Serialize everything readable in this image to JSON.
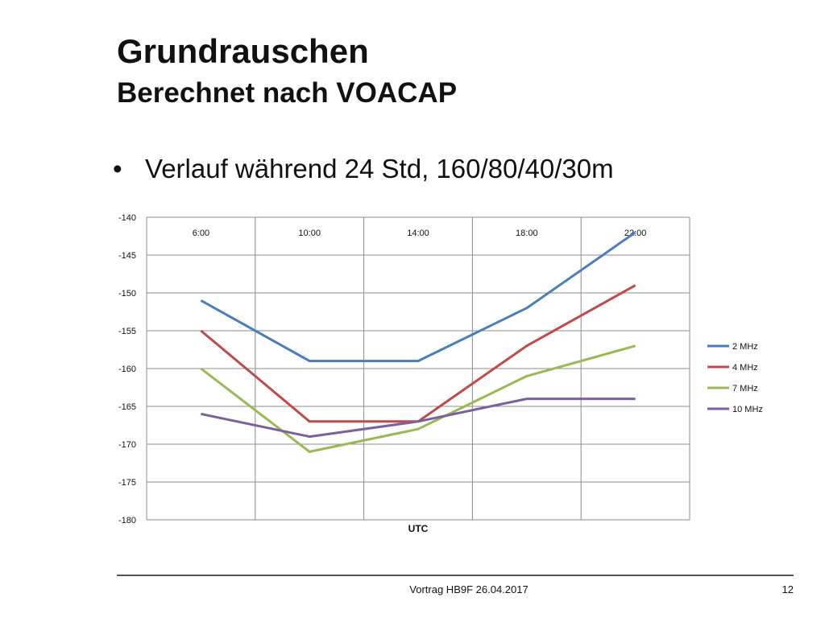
{
  "slide": {
    "title": "Grundrauschen",
    "subtitle": "Berechnet nach VOACAP",
    "bullet_marker": "•",
    "bullet": "Verlauf während 24 Std, 160/80/40/30m",
    "footer": "Vortrag HB9F 26.04.2017",
    "page_number": "12"
  },
  "chart_data": {
    "type": "line",
    "title": "",
    "xlabel": "UTC",
    "ylabel": "",
    "categories": [
      "6:00",
      "10:00",
      "14:00",
      "18:00",
      "22:00"
    ],
    "x_axis_position": "top",
    "ylim": [
      -180,
      -140
    ],
    "ytick_step": 5,
    "grid": true,
    "legend_position": "right",
    "series": [
      {
        "name": "2 MHz",
        "color": "#4a7ebb",
        "values": [
          -151,
          -159,
          -159,
          -152,
          -142
        ]
      },
      {
        "name": "4 MHz",
        "color": "#be4b48",
        "values": [
          -155,
          -167,
          -167,
          -157,
          -149
        ]
      },
      {
        "name": "7 MHz",
        "color": "#98b954",
        "values": [
          -160,
          -171,
          -168,
          -161,
          -157
        ]
      },
      {
        "name": "10 MHz",
        "color": "#7d5fa0",
        "values": [
          -166,
          -169,
          -167,
          -164,
          -164
        ]
      }
    ]
  }
}
